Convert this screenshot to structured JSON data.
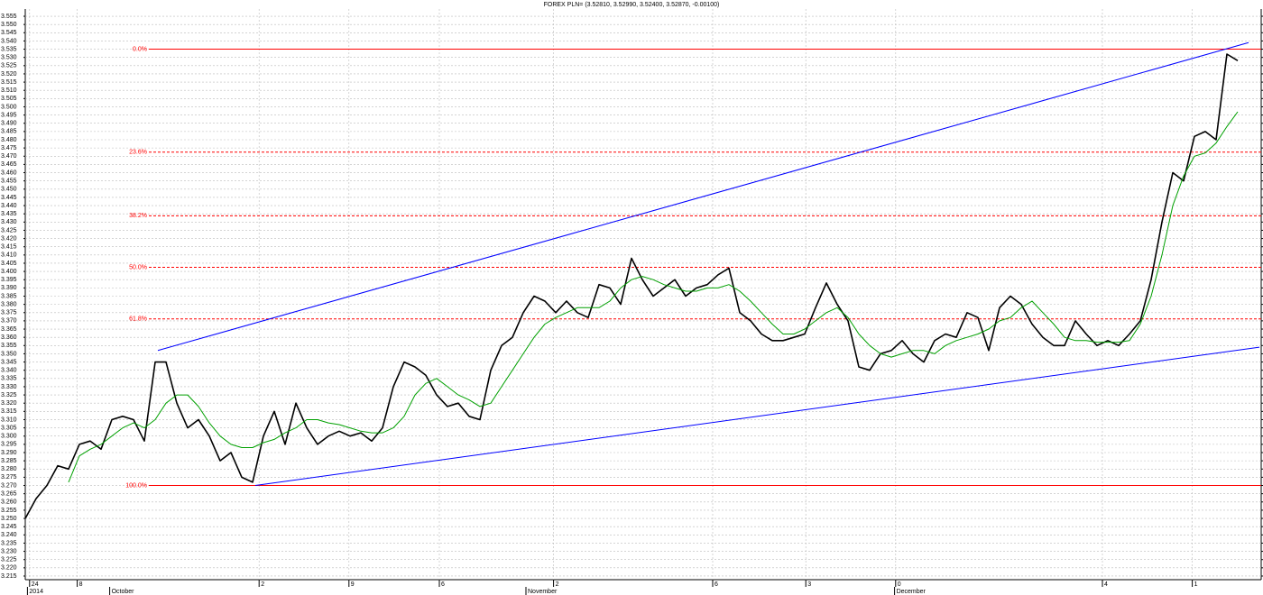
{
  "chart_data": {
    "type": "line",
    "title": "FOREX PLN= (3.52810, 3.52990, 3.52400, 3.52870, -0.00100)",
    "xlim": [
      0,
      114
    ],
    "ylim": [
      3.214,
      3.556
    ],
    "grid": true,
    "yticks": [
      3.215,
      {
        "value": 3.22,
        "label": "3.220"
      },
      3.225,
      {
        "value": 3.23,
        "label": "3.230"
      },
      3.235,
      {
        "value": 3.24,
        "label": "3.240"
      },
      3.245,
      {
        "value": 3.25,
        "label": "3.250"
      },
      3.255,
      {
        "value": 3.26,
        "label": "3.260"
      },
      3.265,
      {
        "value": 3.27,
        "label": "3.270"
      },
      3.275,
      {
        "value": 3.28,
        "label": "3.280"
      },
      3.285,
      {
        "value": 3.29,
        "label": "3.290"
      },
      3.295,
      {
        "value": 3.3,
        "label": "3.300"
      },
      3.305,
      {
        "value": 3.31,
        "label": "3.310"
      },
      3.315,
      {
        "value": 3.32,
        "label": "3.320"
      },
      3.325,
      {
        "value": 3.33,
        "label": "3.330"
      },
      3.335,
      {
        "value": 3.34,
        "label": "3.340"
      },
      3.345,
      {
        "value": 3.35,
        "label": "3.350"
      },
      3.355,
      {
        "value": 3.36,
        "label": "3.360"
      },
      3.365,
      {
        "value": 3.37,
        "label": "3.370"
      },
      3.375,
      {
        "value": 3.38,
        "label": "3.380"
      },
      3.385,
      {
        "value": 3.39,
        "label": "3.390"
      },
      3.395,
      {
        "value": 3.4,
        "label": "3.400"
      },
      3.405,
      {
        "value": 3.41,
        "label": "3.410"
      },
      3.415,
      {
        "value": 3.42,
        "label": "3.420"
      },
      3.425,
      {
        "value": 3.43,
        "label": "3.430"
      },
      3.435,
      {
        "value": 3.44,
        "label": "3.440"
      },
      3.445,
      {
        "value": 3.45,
        "label": "3.450"
      },
      3.455,
      {
        "value": 3.46,
        "label": "3.460"
      },
      3.465,
      {
        "value": 3.47,
        "label": "3.470"
      },
      3.475,
      {
        "value": 3.48,
        "label": "3.480"
      },
      3.485,
      {
        "value": 3.49,
        "label": "3.490"
      },
      3.495,
      {
        "value": 3.5,
        "label": "3.500"
      },
      3.505,
      {
        "value": 3.51,
        "label": "3.510"
      },
      3.515,
      {
        "value": 3.52,
        "label": "3.520"
      },
      3.525,
      {
        "value": 3.53,
        "label": "3.530"
      },
      3.535,
      {
        "value": 3.54,
        "label": "3.540"
      },
      3.545,
      {
        "value": 3.55,
        "label": "3.550"
      },
      3.555
    ],
    "xticks": [
      {
        "value": 0.4,
        "label": "24"
      },
      {
        "value": 4.8,
        "label": "8"
      },
      {
        "value": 21.6,
        "label": "2"
      },
      {
        "value": 29.9,
        "label": "9"
      },
      {
        "value": 38.25,
        "label": "6"
      },
      {
        "value": 48.8,
        "label": "2"
      },
      {
        "value": 63.5,
        "label": "6"
      },
      {
        "value": 72.1,
        "label": "3"
      },
      {
        "value": 80.4,
        "label": "0"
      },
      {
        "value": 99.5,
        "label": "4"
      },
      {
        "value": 107.8,
        "label": "1"
      }
    ],
    "month_ticks": [
      {
        "value": 0.2,
        "label": "2014"
      },
      {
        "value": 7.8,
        "label": "October"
      },
      {
        "value": 46.25,
        "label": "November"
      },
      {
        "value": 80.3,
        "label": "December"
      }
    ],
    "series": [
      {
        "color": "#000000",
        "values": [
          3.25,
          3.262,
          3.27,
          3.282,
          3.28,
          3.295,
          3.297,
          3.292,
          3.31,
          3.312,
          3.31,
          3.297,
          3.345,
          3.345,
          3.32,
          3.305,
          3.31,
          3.3,
          3.285,
          3.29,
          3.275,
          3.272,
          3.3,
          3.315,
          3.295,
          3.32,
          3.305,
          3.295,
          3.3,
          3.303,
          3.3,
          3.302,
          3.297,
          3.305,
          3.33,
          3.345,
          3.342,
          3.337,
          3.325,
          3.318,
          3.32,
          3.312,
          3.31,
          3.34,
          3.355,
          3.36,
          3.375,
          3.385,
          3.382,
          3.375,
          3.382,
          3.375,
          3.372,
          3.392,
          3.39,
          3.38,
          3.408,
          3.395,
          3.385,
          3.39,
          3.395,
          3.385,
          3.39,
          3.392,
          3.398,
          3.402,
          3.375,
          3.37,
          3.362,
          3.358,
          3.358,
          3.36,
          3.362,
          3.378,
          3.393,
          3.38,
          3.37,
          3.342,
          3.34,
          3.35,
          3.352,
          3.358,
          3.35,
          3.345,
          3.358,
          3.362,
          3.36,
          3.375,
          3.372,
          3.352,
          3.378,
          3.385,
          3.38,
          3.368,
          3.36,
          3.355,
          3.355,
          3.37,
          3.362,
          3.355,
          3.358,
          3.355,
          3.362,
          3.37,
          3.395,
          3.43,
          3.46,
          3.455,
          3.482,
          3.485,
          3.48,
          3.532,
          3.528
        ]
      },
      {
        "color": "#00a000",
        "values": [
          null,
          null,
          null,
          null,
          3.272,
          3.288,
          3.292,
          3.295,
          3.3,
          3.305,
          3.308,
          3.305,
          3.31,
          3.32,
          3.325,
          3.325,
          3.318,
          3.308,
          3.3,
          3.295,
          3.293,
          3.293,
          3.296,
          3.298,
          3.302,
          3.305,
          3.31,
          3.31,
          3.308,
          3.307,
          3.305,
          3.303,
          3.302,
          3.302,
          3.305,
          3.312,
          3.325,
          3.332,
          3.335,
          3.33,
          3.325,
          3.322,
          3.318,
          3.32,
          3.33,
          3.34,
          3.35,
          3.36,
          3.368,
          3.372,
          3.375,
          3.378,
          3.378,
          3.378,
          3.382,
          3.39,
          3.395,
          3.397,
          3.395,
          3.392,
          3.39,
          3.388,
          3.388,
          3.39,
          3.39,
          3.392,
          3.388,
          3.382,
          3.375,
          3.368,
          3.362,
          3.362,
          3.365,
          3.37,
          3.375,
          3.378,
          3.372,
          3.362,
          3.355,
          3.35,
          3.348,
          3.35,
          3.352,
          3.352,
          3.35,
          3.355,
          3.358,
          3.36,
          3.362,
          3.365,
          3.37,
          3.372,
          3.378,
          3.382,
          3.375,
          3.368,
          3.36,
          3.358,
          3.358,
          3.357,
          3.357,
          3.357,
          3.358,
          3.368,
          3.385,
          3.41,
          3.44,
          3.458,
          3.47,
          3.472,
          3.478,
          3.488,
          3.497
        ]
      }
    ],
    "trendlines": [
      {
        "color": "#0000ff",
        "x": [
          12.25,
          113
        ],
        "y": [
          3.352,
          3.539
        ]
      },
      {
        "color": "#0000ff",
        "x": [
          21.25,
          114
        ],
        "y": [
          3.27,
          3.354
        ]
      }
    ],
    "fib_color": "#ff0000",
    "fib_levels": [
      {
        "label": "0.0%",
        "value": 3.535,
        "style": "solid"
      },
      {
        "label": "23.6%",
        "value": 3.4725,
        "style": "dashed"
      },
      {
        "label": "38.2%",
        "value": 3.4338,
        "style": "dashed"
      },
      {
        "label": "50.0%",
        "value": 3.4025,
        "style": "dashed"
      },
      {
        "label": "61.8%",
        "value": 3.3712,
        "style": "dashed"
      },
      {
        "label": "100.0%",
        "value": 3.27,
        "style": "solid"
      }
    ]
  }
}
